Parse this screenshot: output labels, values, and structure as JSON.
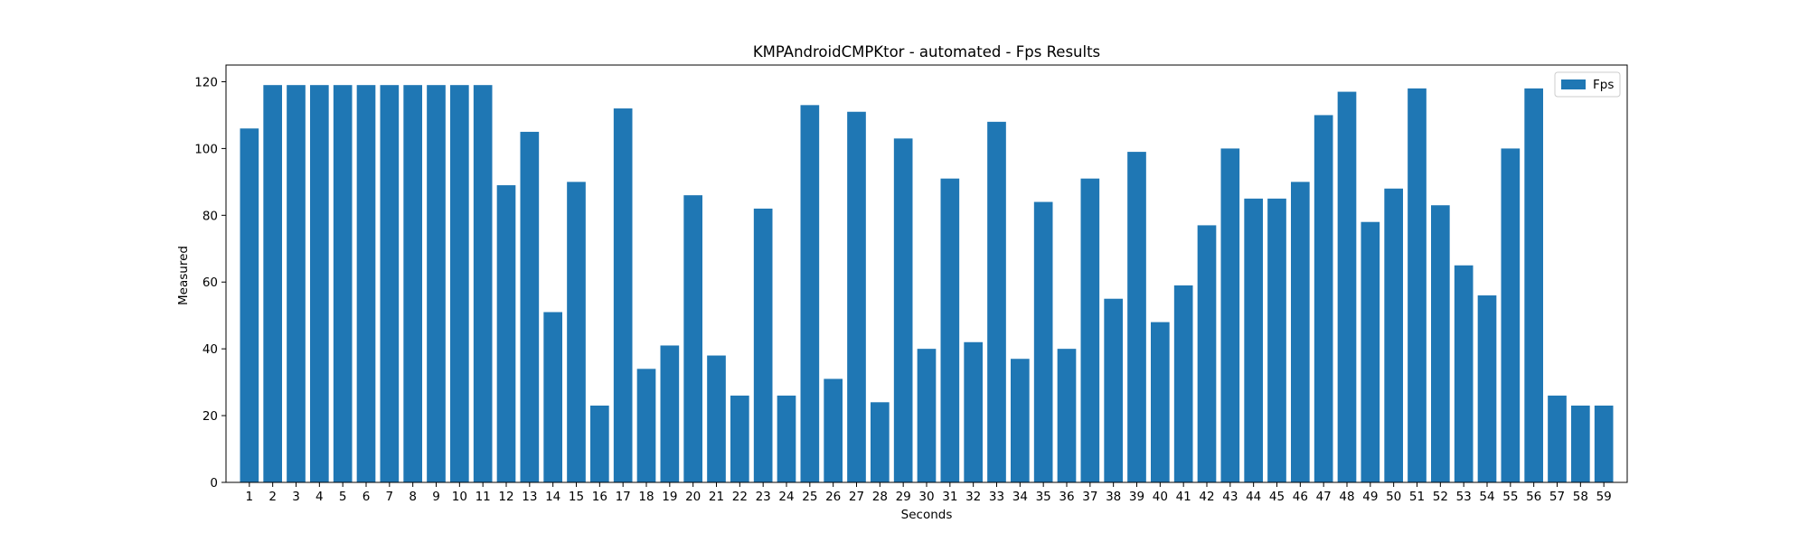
{
  "chart_data": {
    "type": "bar",
    "title": "KMPAndroidCMPKtor - automated - Fps Results",
    "xlabel": "Seconds",
    "ylabel": "Measured",
    "categories": [
      1,
      2,
      3,
      4,
      5,
      6,
      7,
      8,
      9,
      10,
      11,
      12,
      13,
      14,
      15,
      16,
      17,
      18,
      19,
      20,
      21,
      22,
      23,
      24,
      25,
      26,
      27,
      28,
      29,
      30,
      31,
      32,
      33,
      34,
      35,
      36,
      37,
      38,
      39,
      40,
      41,
      42,
      43,
      44,
      45,
      46,
      47,
      48,
      49,
      50,
      51,
      52,
      53,
      54,
      55,
      56,
      57,
      58,
      59
    ],
    "series": [
      {
        "name": "Fps",
        "color": "#1f77b4",
        "values": [
          106,
          119,
          119,
          119,
          119,
          119,
          119,
          119,
          119,
          119,
          119,
          89,
          105,
          51,
          90,
          23,
          112,
          34,
          41,
          86,
          38,
          26,
          82,
          26,
          113,
          31,
          111,
          24,
          103,
          40,
          91,
          42,
          108,
          37,
          84,
          40,
          91,
          55,
          99,
          48,
          59,
          77,
          100,
          85,
          85,
          90,
          110,
          117,
          78,
          88,
          118,
          83,
          65,
          56,
          100,
          118,
          26,
          23,
          23
        ]
      }
    ],
    "yticks": [
      0,
      20,
      40,
      60,
      80,
      100,
      120
    ],
    "ylim": [
      0,
      125
    ],
    "legend_position": "top-right",
    "grid": false
  }
}
